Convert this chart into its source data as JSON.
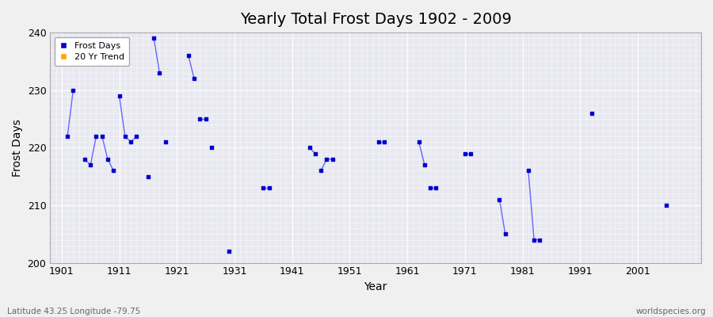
{
  "title": "Yearly Total Frost Days 1902 - 2009",
  "xlabel": "Year",
  "ylabel": "Frost Days",
  "xlim": [
    1899,
    2012
  ],
  "ylim": [
    200,
    240
  ],
  "xticks": [
    1901,
    1911,
    1921,
    1931,
    1941,
    1951,
    1961,
    1971,
    1981,
    1991,
    2001
  ],
  "yticks": [
    200,
    210,
    220,
    230,
    240
  ],
  "dot_color": "#0000cc",
  "line_color": "#6666ff",
  "legend_dot_color": "#0000cc",
  "legend_trend_color": "#FFA500",
  "fig_bg_color": "#f0f0f0",
  "plot_bg_color": "#e8e8f0",
  "title_fontsize": 14,
  "footer_left": "Latitude 43.25 Longitude -79.75",
  "footer_right": "worldspecies.org",
  "segments": [
    {
      "years": [
        1902,
        1903
      ],
      "values": [
        222,
        230
      ]
    },
    {
      "years": [
        1905,
        1906,
        1907
      ],
      "values": [
        218,
        217,
        222
      ]
    },
    {
      "years": [
        1908,
        1909,
        1910
      ],
      "values": [
        222,
        218,
        216
      ]
    },
    {
      "years": [
        1911,
        1912,
        1913,
        1914
      ],
      "values": [
        229,
        222,
        221,
        222
      ]
    },
    {
      "years": [
        1917,
        1918
      ],
      "values": [
        239,
        233
      ]
    },
    {
      "years": [
        1916
      ],
      "values": [
        215
      ]
    },
    {
      "years": [
        1919
      ],
      "values": [
        221
      ]
    },
    {
      "years": [
        1923,
        1924
      ],
      "values": [
        236,
        232
      ]
    },
    {
      "years": [
        1925,
        1926
      ],
      "values": [
        225,
        225
      ]
    },
    {
      "years": [
        1927
      ],
      "values": [
        220
      ]
    },
    {
      "years": [
        1930
      ],
      "values": [
        202
      ]
    },
    {
      "years": [
        1936,
        1937
      ],
      "values": [
        213,
        213
      ]
    },
    {
      "years": [
        1944,
        1945
      ],
      "values": [
        220,
        219
      ]
    },
    {
      "years": [
        1946,
        1947,
        1948
      ],
      "values": [
        216,
        218,
        218
      ]
    },
    {
      "years": [
        1956,
        1957
      ],
      "values": [
        221,
        221
      ]
    },
    {
      "years": [
        1963,
        1964
      ],
      "values": [
        221,
        217
      ]
    },
    {
      "years": [
        1965,
        1966
      ],
      "values": [
        213,
        213
      ]
    },
    {
      "years": [
        1971,
        1972
      ],
      "values": [
        219,
        219
      ]
    },
    {
      "years": [
        1977,
        1978
      ],
      "values": [
        211,
        205
      ]
    },
    {
      "years": [
        1982,
        1983,
        1984
      ],
      "values": [
        216,
        204,
        204
      ]
    },
    {
      "years": [
        1993
      ],
      "values": [
        226
      ]
    },
    {
      "years": [
        2006
      ],
      "values": [
        210
      ]
    }
  ]
}
